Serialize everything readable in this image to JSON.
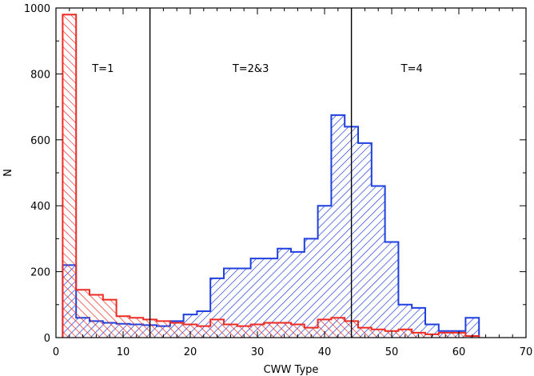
{
  "chart_data": {
    "type": "bar",
    "title": "",
    "xlabel": "CWW Type",
    "ylabel": "N",
    "xlim": [
      0,
      70
    ],
    "ylim": [
      0,
      1000
    ],
    "bin_width": 2,
    "x_ticks": [
      0,
      10,
      20,
      30,
      40,
      50,
      60,
      70
    ],
    "y_ticks": [
      0,
      200,
      400,
      600,
      800,
      1000
    ],
    "grid": false,
    "regions": [
      {
        "label": "T=1",
        "x_start": 0,
        "x_end": 14
      },
      {
        "label": "T=2&3",
        "x_start": 14,
        "x_end": 44
      },
      {
        "label": "T=4",
        "x_start": 44,
        "x_end": 70
      }
    ],
    "vertical_lines": [
      14,
      44
    ],
    "series": [
      {
        "color": "#1f3fe0",
        "hatch": "backslash",
        "bins": [
          {
            "x0": 1,
            "y": 220
          },
          {
            "x0": 3,
            "y": 60
          },
          {
            "x0": 5,
            "y": 50
          },
          {
            "x0": 7,
            "y": 45
          },
          {
            "x0": 9,
            "y": 42
          },
          {
            "x0": 11,
            "y": 40
          },
          {
            "x0": 13,
            "y": 38
          },
          {
            "x0": 15,
            "y": 35
          },
          {
            "x0": 17,
            "y": 50
          },
          {
            "x0": 19,
            "y": 70
          },
          {
            "x0": 21,
            "y": 80
          },
          {
            "x0": 23,
            "y": 180
          },
          {
            "x0": 25,
            "y": 210
          },
          {
            "x0": 27,
            "y": 210
          },
          {
            "x0": 29,
            "y": 240
          },
          {
            "x0": 31,
            "y": 240
          },
          {
            "x0": 33,
            "y": 270
          },
          {
            "x0": 35,
            "y": 260
          },
          {
            "x0": 37,
            "y": 300
          },
          {
            "x0": 39,
            "y": 400
          },
          {
            "x0": 41,
            "y": 675
          },
          {
            "x0": 43,
            "y": 640
          },
          {
            "x0": 45,
            "y": 590
          },
          {
            "x0": 47,
            "y": 460
          },
          {
            "x0": 49,
            "y": 290
          },
          {
            "x0": 51,
            "y": 100
          },
          {
            "x0": 53,
            "y": 90
          },
          {
            "x0": 55,
            "y": 40
          },
          {
            "x0": 57,
            "y": 20
          },
          {
            "x0": 59,
            "y": 20
          },
          {
            "x0": 61,
            "y": 60
          }
        ]
      },
      {
        "color": "#ee2a22",
        "hatch": "slash",
        "bins": [
          {
            "x0": 1,
            "y": 980
          },
          {
            "x0": 3,
            "y": 145
          },
          {
            "x0": 5,
            "y": 130
          },
          {
            "x0": 7,
            "y": 115
          },
          {
            "x0": 9,
            "y": 65
          },
          {
            "x0": 11,
            "y": 60
          },
          {
            "x0": 13,
            "y": 55
          },
          {
            "x0": 15,
            "y": 50
          },
          {
            "x0": 17,
            "y": 45
          },
          {
            "x0": 19,
            "y": 40
          },
          {
            "x0": 21,
            "y": 35
          },
          {
            "x0": 23,
            "y": 55
          },
          {
            "x0": 25,
            "y": 40
          },
          {
            "x0": 27,
            "y": 35
          },
          {
            "x0": 29,
            "y": 40
          },
          {
            "x0": 31,
            "y": 45
          },
          {
            "x0": 33,
            "y": 45
          },
          {
            "x0": 35,
            "y": 40
          },
          {
            "x0": 37,
            "y": 30
          },
          {
            "x0": 39,
            "y": 55
          },
          {
            "x0": 41,
            "y": 60
          },
          {
            "x0": 43,
            "y": 50
          },
          {
            "x0": 45,
            "y": 30
          },
          {
            "x0": 47,
            "y": 25
          },
          {
            "x0": 49,
            "y": 20
          },
          {
            "x0": 51,
            "y": 25
          },
          {
            "x0": 53,
            "y": 15
          },
          {
            "x0": 55,
            "y": 10
          },
          {
            "x0": 57,
            "y": 15
          },
          {
            "x0": 59,
            "y": 15
          },
          {
            "x0": 61,
            "y": 5
          }
        ]
      }
    ]
  }
}
